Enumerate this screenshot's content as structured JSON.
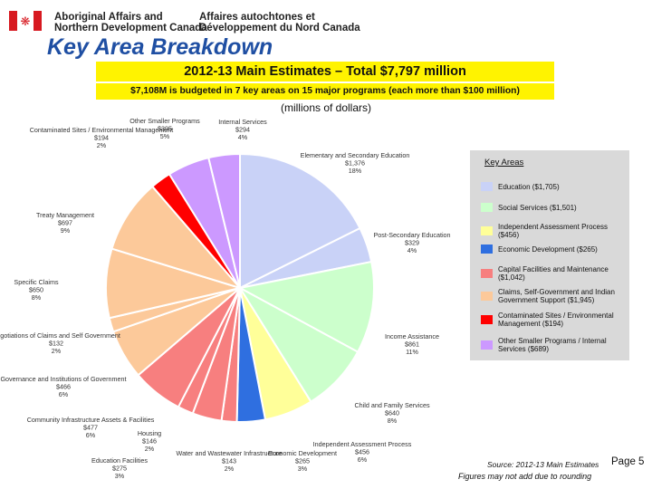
{
  "header": {
    "org_en_line1": "Aboriginal Affairs and",
    "org_en_line2": "Northern Development Canada",
    "org_fr_line1": "Affaires autochtones et",
    "org_fr_line2": "Développement du Nord Canada",
    "flag_colors": {
      "red": "#d71920",
      "white": "#ffffff"
    }
  },
  "page_title": "Key Area Breakdown",
  "subtitle": "2012-13 Main Estimates – Total $7,797 million",
  "subtitle2": "$7,108M is budgeted in 7 key areas on 15 major programs (each more than $100 million)",
  "units": "(millions of dollars)",
  "legend": {
    "title": "Key Areas",
    "items": [
      {
        "label": "Education ($1,705)",
        "color": "#c9d2f7"
      },
      {
        "label": "Social Services ($1,501)",
        "color": "#ccffcc"
      },
      {
        "label": "Independent Assessment Process ($456)",
        "color": "#ffff99"
      },
      {
        "label": "Economic Development ($265)",
        "color": "#2f6fe0"
      },
      {
        "label": "Capital Facilities and Maintenance ($1,042)",
        "color": "#f77f7f"
      },
      {
        "label": "Claims, Self-Government and Indian Government Support ($1,945)",
        "color": "#fcc99a"
      },
      {
        "label": "Contaminated Sites / Environmental Management ($194)",
        "color": "#ff0000"
      },
      {
        "label": "Other Smaller Programs / Internal Services ($689)",
        "color": "#cc99ff"
      }
    ]
  },
  "chart_data": {
    "type": "pie",
    "units": "millions of dollars",
    "slices": [
      {
        "label": "Elementary and Secondary Education",
        "value": 1376,
        "percent": "18%",
        "value_text": "$1,376",
        "color": "#c9d2f7"
      },
      {
        "label": "Post-Secondary Education",
        "value": 329,
        "percent": "4%",
        "value_text": "$329",
        "color": "#c9d2f7"
      },
      {
        "label": "Income Assistance",
        "value": 861,
        "percent": "11%",
        "value_text": "$861",
        "color": "#ccffcc"
      },
      {
        "label": "Child and Family Services",
        "value": 640,
        "percent": "8%",
        "value_text": "$640",
        "color": "#ccffcc"
      },
      {
        "label": "Independent Assessment Process",
        "value": 456,
        "percent": "6%",
        "value_text": "$456",
        "color": "#ffff99"
      },
      {
        "label": "Economic Development",
        "value": 265,
        "percent": "3%",
        "value_text": "$265",
        "color": "#2f6fe0"
      },
      {
        "label": "Water and Wastewater Infrastructure",
        "value": 143,
        "percent": "2%",
        "value_text": "$143",
        "color": "#f77f7f"
      },
      {
        "label": "Education Facilities",
        "value": 275,
        "percent": "3%",
        "value_text": "$275",
        "color": "#f77f7f"
      },
      {
        "label": "Housing",
        "value": 146,
        "percent": "2%",
        "value_text": "$146",
        "color": "#f77f7f"
      },
      {
        "label": "Community Infrastructure Assets & Facilities",
        "value": 477,
        "percent": "6%",
        "value_text": "$477",
        "color": "#f77f7f"
      },
      {
        "label": "Governance and Institutions of Government",
        "value": 466,
        "percent": "6%",
        "value_text": "$466",
        "color": "#fcc99a"
      },
      {
        "label": "Negotiations of Claims and Self Government",
        "value": 132,
        "percent": "2%",
        "value_text": "$132",
        "color": "#fcc99a"
      },
      {
        "label": "Specific Claims",
        "value": 650,
        "percent": "8%",
        "value_text": "$650",
        "color": "#fcc99a"
      },
      {
        "label": "Treaty Management",
        "value": 697,
        "percent": "9%",
        "value_text": "$697",
        "color": "#fcc99a"
      },
      {
        "label": "Contaminated Sites / Environmental Management",
        "value": 194,
        "percent": "2%",
        "value_text": "$194",
        "color": "#ff0000"
      },
      {
        "label": "Other Smaller Programs",
        "value": 395,
        "percent": "5%",
        "value_text": "$395",
        "color": "#cc99ff"
      },
      {
        "label": "Internal Services",
        "value": 294,
        "percent": "4%",
        "value_text": "$294",
        "color": "#cc99ff"
      }
    ]
  },
  "footer": {
    "source": "Source: 2012-13 Main Estimates",
    "note": "Figures may not add due to rounding",
    "page": "Page 5"
  }
}
